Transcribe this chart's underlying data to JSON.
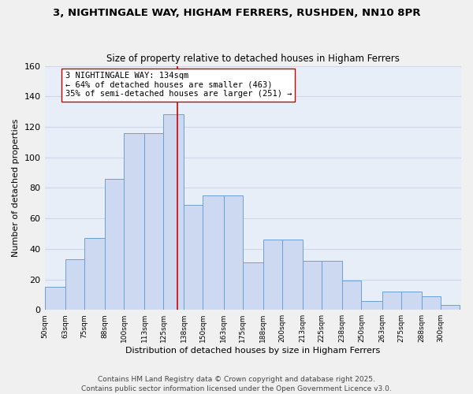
{
  "title1": "3, NIGHTINGALE WAY, HIGHAM FERRERS, RUSHDEN, NN10 8PR",
  "title2": "Size of property relative to detached houses in Higham Ferrers",
  "xlabel": "Distribution of detached houses by size in Higham Ferrers",
  "ylabel": "Number of detached properties",
  "bar_color": "#ccd9f0",
  "bar_edge_color": "#6a9fd8",
  "reference_line_x": 134,
  "reference_line_color": "#cc0000",
  "annotation_text": "3 NIGHTINGALE WAY: 134sqm\n← 64% of detached houses are smaller (463)\n35% of semi-detached houses are larger (251) →",
  "annotation_box_color": "#ffffff",
  "annotation_box_edge_color": "#cc0000",
  "ylim": [
    0,
    160
  ],
  "yticks": [
    0,
    20,
    40,
    60,
    80,
    100,
    120,
    140,
    160
  ],
  "grid_color": "#d0d8e8",
  "bg_color": "#e8eef8",
  "footer_text": "Contains HM Land Registry data © Crown copyright and database right 2025.\nContains public sector information licensed under the Open Government Licence v3.0.",
  "title_fontsize": 9.5,
  "subtitle_fontsize": 8.5,
  "annotation_fontsize": 7.5,
  "footer_fontsize": 6.5,
  "bar_lefts": [
    50,
    63,
    75,
    88,
    100,
    113,
    125,
    138,
    150,
    163,
    175,
    188,
    200,
    213,
    225,
    238,
    250,
    263,
    275,
    288,
    300
  ],
  "bar_vals": [
    15,
    33,
    47,
    86,
    116,
    116,
    128,
    69,
    75,
    75,
    31,
    46,
    46,
    32,
    32,
    19,
    6,
    12,
    12,
    9,
    3
  ],
  "tick_positions": [
    50,
    63,
    75,
    88,
    100,
    113,
    125,
    138,
    150,
    163,
    175,
    188,
    200,
    213,
    225,
    238,
    250,
    263,
    275,
    288,
    300
  ]
}
